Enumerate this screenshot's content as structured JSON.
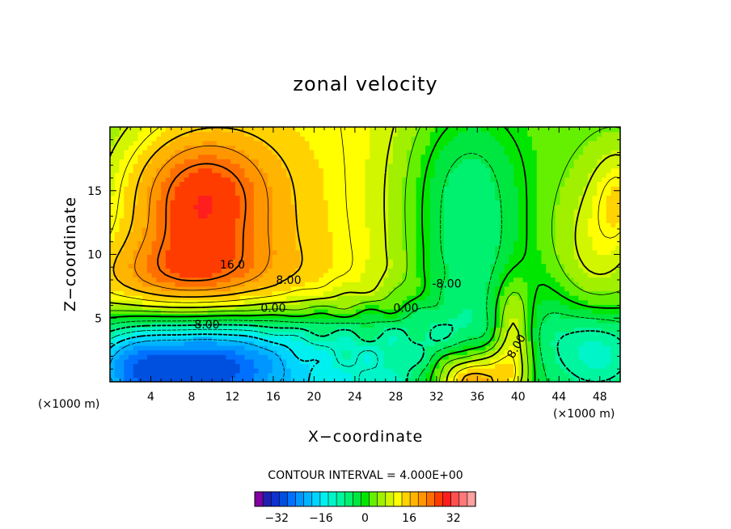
{
  "chart_data": {
    "type": "contour",
    "title": "zonal velocity",
    "xlabel": "X−coordinate",
    "ylabel": "Z−coordinate",
    "x_unit": "(×1000 m)",
    "xlim": [
      0,
      50
    ],
    "ylim": [
      0,
      20
    ],
    "x_ticks": [
      4,
      8,
      12,
      16,
      20,
      24,
      28,
      32,
      36,
      40,
      44,
      48
    ],
    "y_ticks": [
      5,
      10,
      15
    ],
    "contour_interval_text": "CONTOUR INTERVAL = 4.000E+00",
    "contour_labels": [
      "16.0",
      "8.00",
      "0.00",
      "-8.00",
      "-8.00",
      "0.00",
      "8.00"
    ],
    "colorbar": {
      "range": [
        -40,
        40
      ],
      "tick_values": [
        -32,
        -16,
        0,
        16,
        32
      ],
      "tick_labels": [
        "−32",
        "−16",
        "0",
        "16",
        "32"
      ],
      "colors": [
        "#8000a0",
        "#2020b0",
        "#1030d0",
        "#0050e0",
        "#0070ff",
        "#0096ff",
        "#00b4ff",
        "#00d4ff",
        "#00f0f0",
        "#00f5c8",
        "#00f5a0",
        "#00f070",
        "#00e640",
        "#00e600",
        "#64f000",
        "#a0f000",
        "#d2f500",
        "#ffff00",
        "#ffd200",
        "#ffb400",
        "#ff9600",
        "#ff6e00",
        "#ff3c00",
        "#ff1e1e",
        "#ff5050",
        "#ff7878",
        "#ffa0a0"
      ]
    },
    "field_features": [
      {
        "kind": "max",
        "x": 8,
        "z": 15,
        "value": 30
      },
      {
        "kind": "min",
        "x": 9,
        "z": 1,
        "value": -22
      },
      {
        "kind": "min",
        "x": 35,
        "z": 15,
        "value": -14
      },
      {
        "kind": "max",
        "x": 35,
        "z": 0,
        "value": 26
      }
    ]
  }
}
